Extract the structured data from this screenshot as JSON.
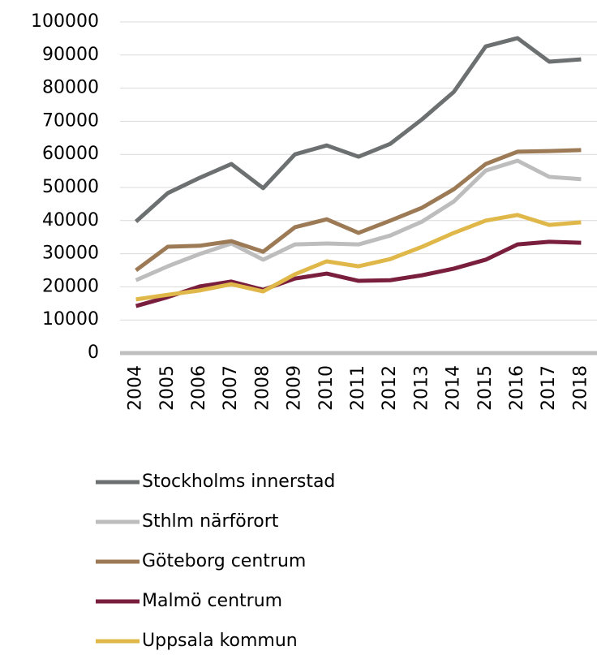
{
  "chart_data": {
    "type": "line",
    "categories": [
      "2004",
      "2005",
      "2006",
      "2007",
      "2008",
      "2009",
      "2010",
      "2011",
      "2012",
      "2013",
      "2014",
      "2015",
      "2016",
      "2017",
      "2018"
    ],
    "series": [
      {
        "name": "Stockholms innerstad",
        "color": "#6d7070",
        "values": [
          39700,
          48300,
          52900,
          57100,
          49800,
          60000,
          62700,
          59300,
          63200,
          70600,
          78900,
          92600,
          95100,
          88000,
          88700
        ]
      },
      {
        "name": "Sthlm närförort",
        "color": "#bdbdbd",
        "values": [
          22000,
          26200,
          29900,
          33100,
          28200,
          32800,
          33100,
          32800,
          35500,
          39700,
          45800,
          55100,
          58100,
          53200,
          52500
        ]
      },
      {
        "name": "Göteborg centrum",
        "color": "#9c7a56",
        "values": [
          25000,
          32100,
          32400,
          33800,
          30600,
          38000,
          40400,
          36300,
          40000,
          43900,
          49500,
          57100,
          60800,
          61000,
          61300
        ]
      },
      {
        "name": "Malmö centrum",
        "color": "#7a1e3e",
        "values": [
          14200,
          16900,
          20100,
          21600,
          19100,
          22500,
          24000,
          21800,
          22000,
          23500,
          25500,
          28200,
          32800,
          33600,
          33300
        ]
      },
      {
        "name": "Uppsala kommun",
        "color": "#e0b84a",
        "values": [
          16200,
          17600,
          18900,
          20800,
          18600,
          23800,
          27700,
          26200,
          28400,
          32100,
          36300,
          40000,
          41700,
          38700,
          39500
        ]
      }
    ],
    "ylim": [
      0,
      100000
    ],
    "yticks": [
      0,
      10000,
      20000,
      30000,
      40000,
      50000,
      60000,
      70000,
      80000,
      90000,
      100000
    ],
    "grid": true,
    "legend": "bottom"
  }
}
